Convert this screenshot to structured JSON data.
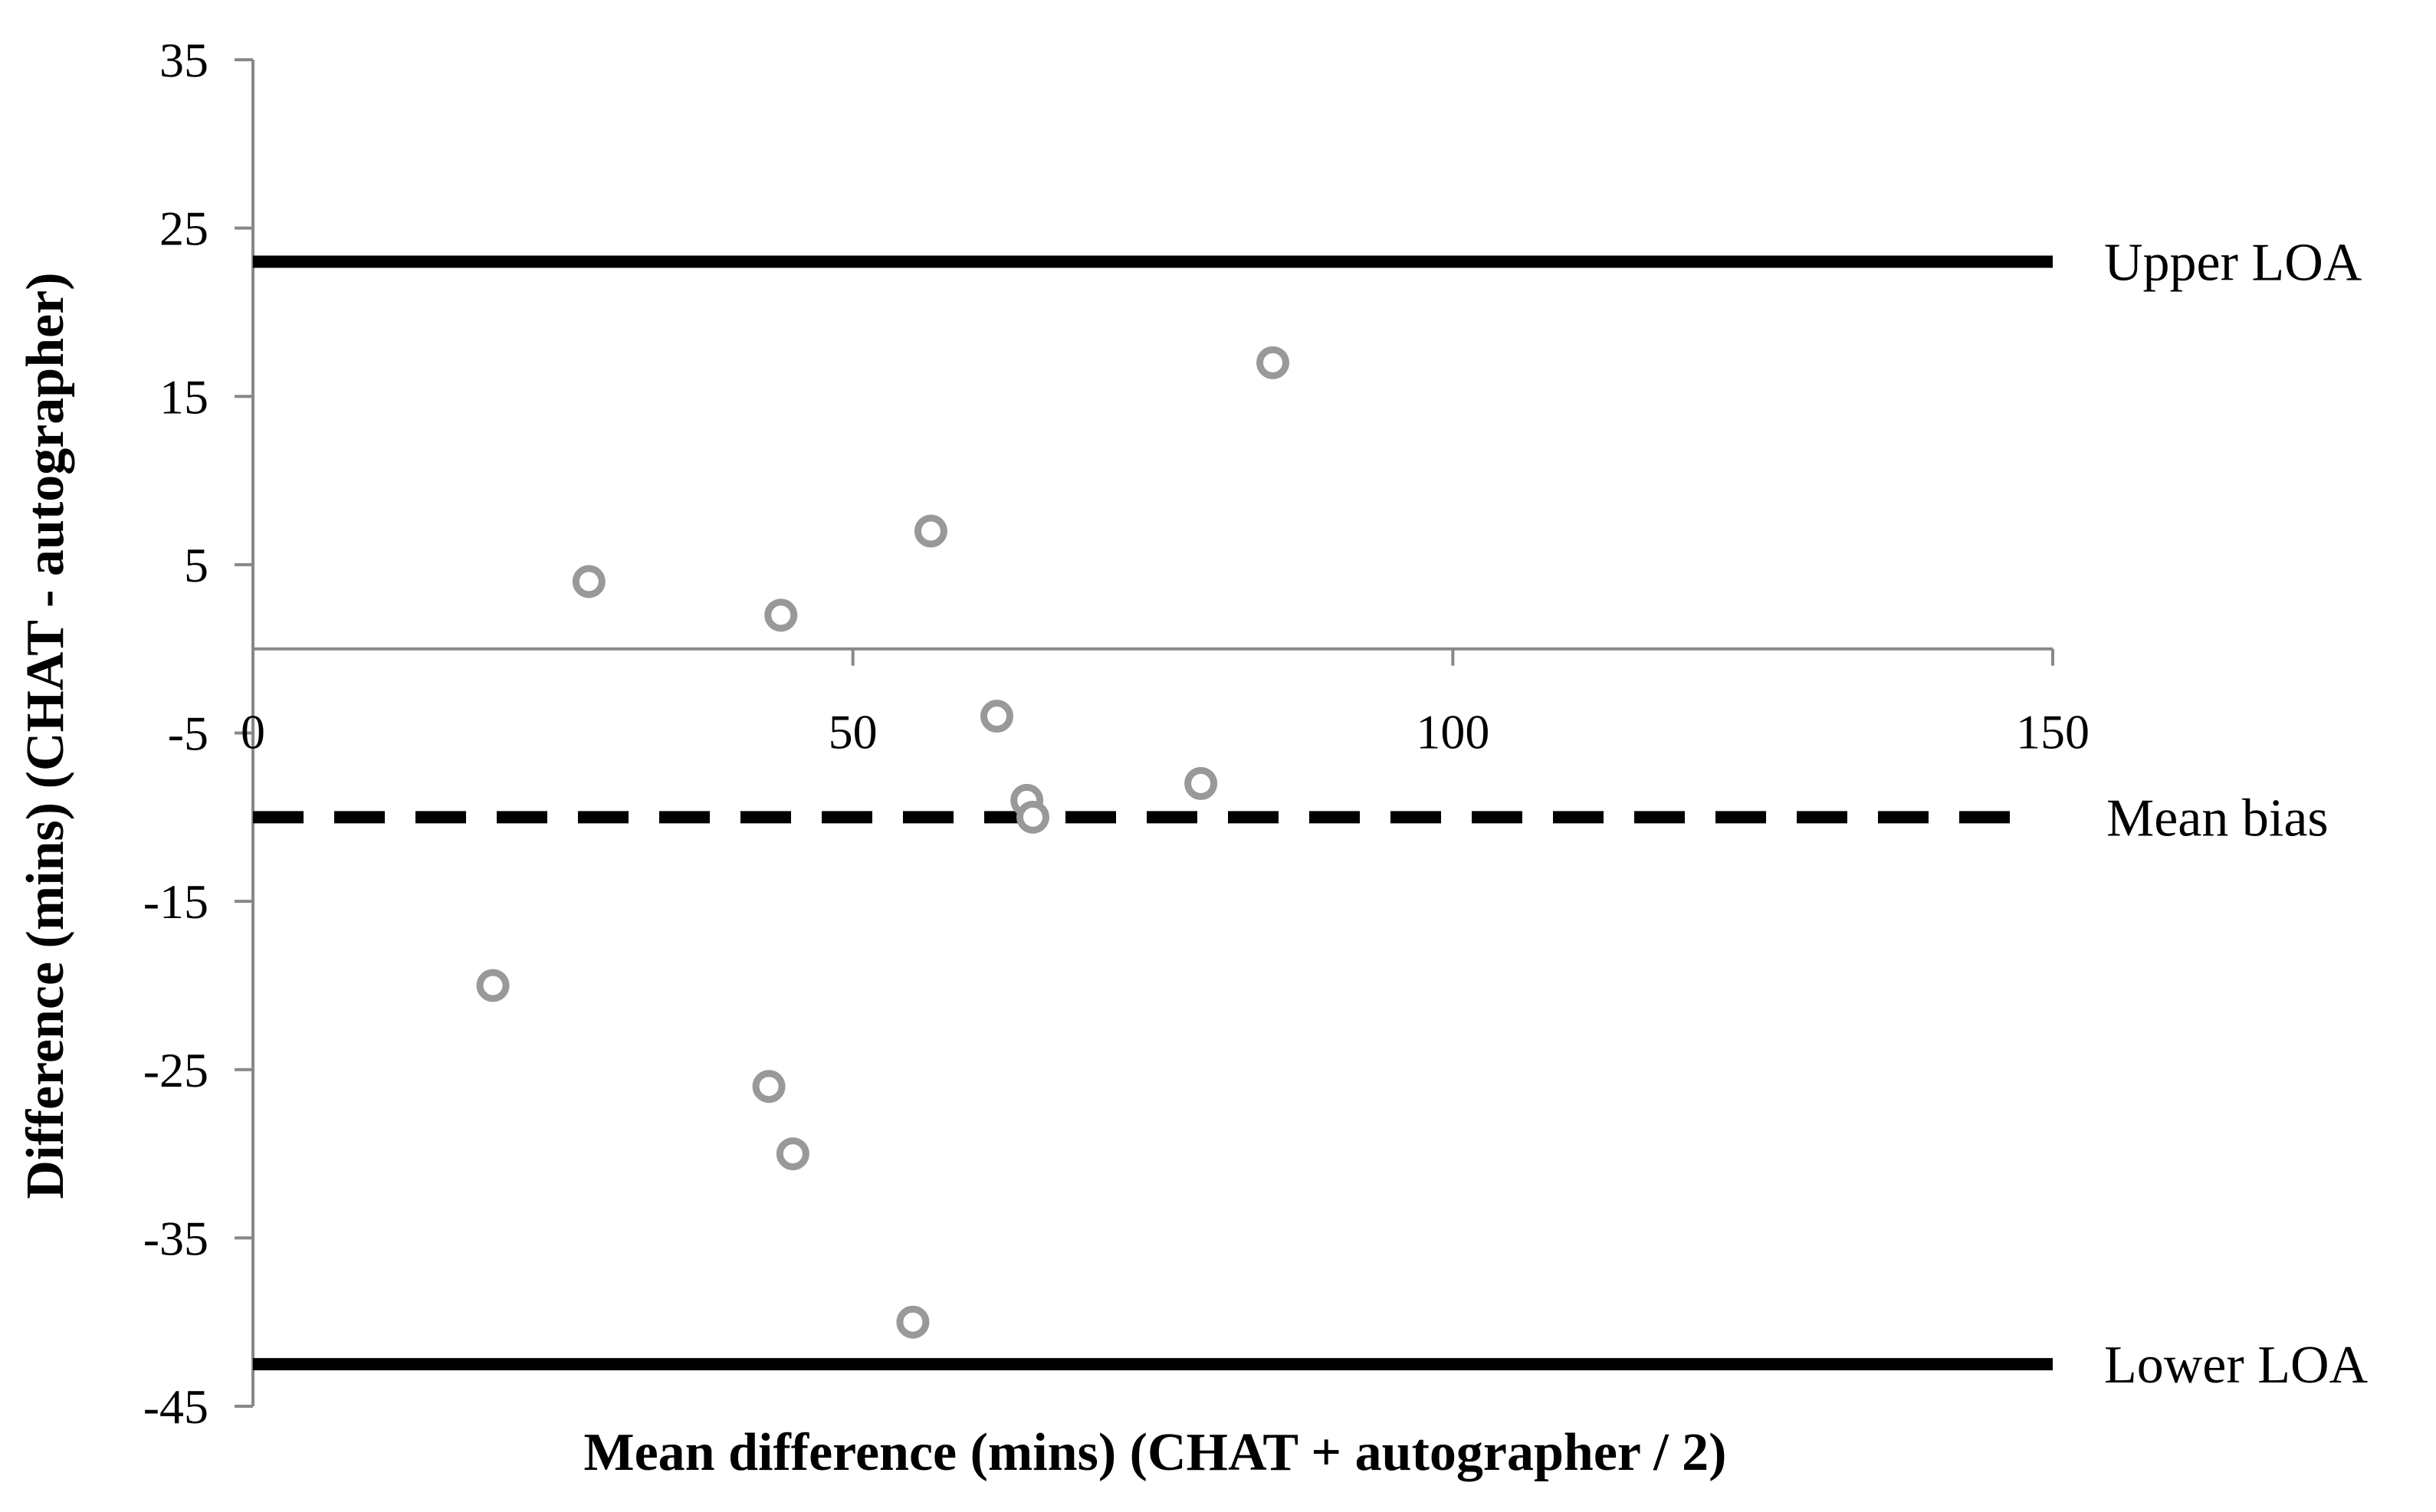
{
  "chart_data": {
    "type": "scatter",
    "title": "",
    "xlabel": "Mean difference (mins) (CHAT + autographer / 2)",
    "ylabel": "Difference (mins)  (CHAT - autographer)",
    "xlim": [
      0,
      150
    ],
    "ylim": [
      -45,
      35
    ],
    "x_ticks": [
      0,
      50,
      100,
      150
    ],
    "y_ticks": [
      35,
      25,
      15,
      5,
      -5,
      -15,
      -25,
      -35,
      -45
    ],
    "grid": false,
    "point_color": "#999999",
    "points": [
      {
        "x": 20,
        "y": -20
      },
      {
        "x": 28,
        "y": 4
      },
      {
        "x": 43,
        "y": -26
      },
      {
        "x": 44,
        "y": 2
      },
      {
        "x": 45,
        "y": -30
      },
      {
        "x": 55,
        "y": -40
      },
      {
        "x": 56.5,
        "y": 7
      },
      {
        "x": 62,
        "y": -4
      },
      {
        "x": 64.5,
        "y": -9
      },
      {
        "x": 65,
        "y": -10
      },
      {
        "x": 79,
        "y": -8
      },
      {
        "x": 85,
        "y": 17
      }
    ],
    "reference_lines": [
      {
        "name": "Upper LOA",
        "y": 23,
        "style": "solid",
        "color": "#000000"
      },
      {
        "name": "Mean bias",
        "y": -10,
        "style": "dashed",
        "color": "#000000"
      },
      {
        "name": "Lower LOA",
        "y": -42.5,
        "style": "solid",
        "color": "#000000"
      }
    ]
  }
}
